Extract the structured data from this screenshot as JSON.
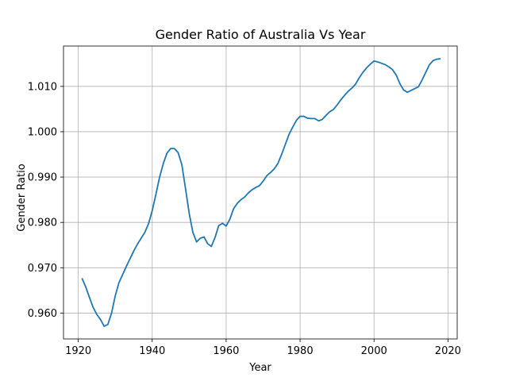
{
  "chart_data": {
    "type": "line",
    "title": "Gender Ratio of Australia Vs Year",
    "xlabel": "Year",
    "ylabel": "Gender Ratio",
    "xlim": [
      1916,
      2022.5
    ],
    "ylim": [
      0.9543,
      1.0189
    ],
    "xticks": [
      1920,
      1940,
      1960,
      1980,
      2000,
      2020
    ],
    "yticks": [
      0.96,
      0.97,
      0.98,
      0.99,
      1.0,
      1.01
    ],
    "xtick_labels": [
      "1920",
      "1940",
      "1960",
      "1980",
      "2000",
      "2020"
    ],
    "ytick_labels": [
      "0.960",
      "0.970",
      "0.980",
      "0.990",
      "1.000",
      "1.010"
    ],
    "grid": true,
    "line_color": "#1f77b4",
    "series": [
      {
        "x": [
          1921,
          1922,
          1923,
          1924,
          1925,
          1926,
          1927,
          1928,
          1929,
          1930,
          1931,
          1932,
          1933,
          1934,
          1935,
          1936,
          1937,
          1938,
          1939,
          1940,
          1941,
          1942,
          1943,
          1944,
          1945,
          1946,
          1947,
          1948,
          1949,
          1950,
          1951,
          1952,
          1953,
          1954,
          1955,
          1956,
          1957,
          1958,
          1959,
          1960,
          1961,
          1962,
          1963,
          1964,
          1965,
          1966,
          1967,
          1968,
          1969,
          1970,
          1971,
          1972,
          1973,
          1974,
          1975,
          1976,
          1977,
          1978,
          1979,
          1980,
          1981,
          1982,
          1983,
          1984,
          1985,
          1986,
          1987,
          1988,
          1989,
          1990,
          1991,
          1992,
          1993,
          1994,
          1995,
          1996,
          1997,
          1998,
          1999,
          2000,
          2001,
          2002,
          2003,
          2004,
          2005,
          2006,
          2007,
          2008,
          2009,
          2010,
          2011,
          2012,
          2013,
          2014,
          2015,
          2016,
          2017,
          2018
        ],
        "y": [
          0.9677,
          0.9658,
          0.9635,
          0.9613,
          0.9597,
          0.9586,
          0.9571,
          0.9575,
          0.96,
          0.9638,
          0.9667,
          0.9685,
          0.9703,
          0.972,
          0.9737,
          0.9752,
          0.9765,
          0.9778,
          0.9797,
          0.9826,
          0.9862,
          0.99,
          0.993,
          0.9953,
          0.9963,
          0.9963,
          0.9954,
          0.9928,
          0.9875,
          0.982,
          0.9778,
          0.9757,
          0.9765,
          0.9768,
          0.9753,
          0.9747,
          0.9767,
          0.9793,
          0.9798,
          0.9792,
          0.9807,
          0.983,
          0.9842,
          0.985,
          0.9856,
          0.9865,
          0.9872,
          0.9877,
          0.9881,
          0.9891,
          0.9903,
          0.991,
          0.9918,
          0.993,
          0.995,
          0.9972,
          0.9994,
          1.001,
          1.0025,
          1.0034,
          1.0034,
          1.003,
          1.0029,
          1.0029,
          1.0024,
          1.0027,
          1.0036,
          1.0044,
          1.0049,
          1.0059,
          1.007,
          1.008,
          1.0089,
          1.0096,
          1.0105,
          1.0119,
          1.0131,
          1.0141,
          1.0149,
          1.0156,
          1.0154,
          1.0151,
          1.0148,
          1.0143,
          1.0137,
          1.0125,
          1.0106,
          1.0092,
          1.0087,
          1.0091,
          1.0095,
          1.0099,
          1.0114,
          1.0131,
          1.0148,
          1.0157,
          1.016,
          1.0161
        ]
      }
    ]
  }
}
